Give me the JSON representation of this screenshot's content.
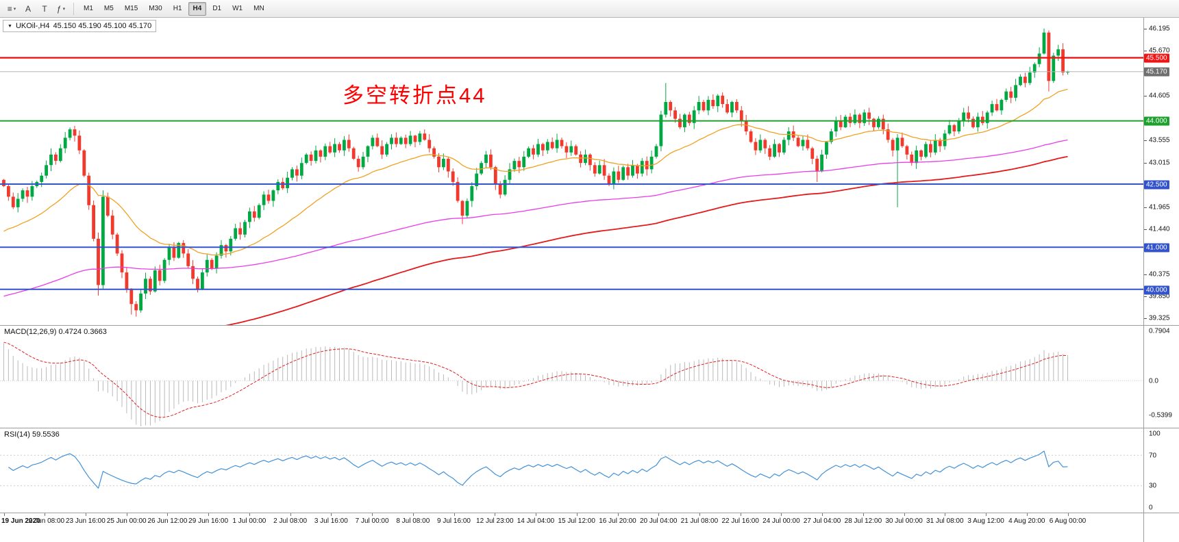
{
  "toolbar": {
    "icons": [
      {
        "name": "menu-icon",
        "glyph": "≡",
        "caret": true
      },
      {
        "name": "pointer-tool-icon",
        "glyph": "A",
        "caret": false
      },
      {
        "name": "text-tool-icon",
        "glyph": "T",
        "caret": false
      },
      {
        "name": "indicators-icon",
        "glyph": "ƒ",
        "caret": true
      }
    ],
    "timeframes": [
      {
        "label": "M1",
        "active": false
      },
      {
        "label": "M5",
        "active": false
      },
      {
        "label": "M15",
        "active": false
      },
      {
        "label": "M30",
        "active": false
      },
      {
        "label": "H1",
        "active": false
      },
      {
        "label": "H4",
        "active": true
      },
      {
        "label": "D1",
        "active": false
      },
      {
        "label": "W1",
        "active": false
      },
      {
        "label": "MN",
        "active": false
      }
    ]
  },
  "symbol_header": {
    "symbol": "UKOil-,H4",
    "ohlc": "45.150 45.190 45.100 45.170"
  },
  "annotation": {
    "text": "多空转折点44",
    "color": "#ff0000"
  },
  "main_chart": {
    "price_ticks": [
      46.195,
      45.67,
      44.605,
      43.555,
      43.015,
      41.965,
      41.44,
      40.375,
      39.85,
      39.325
    ],
    "levels": [
      {
        "label": "45.500",
        "value": 45.5,
        "color": "#f21414",
        "thickness": 2.4
      },
      {
        "label": "44.000",
        "value": 44.0,
        "color": "#1ba12c",
        "thickness": 2
      },
      {
        "label": "42.500",
        "value": 42.5,
        "color": "#3353cd",
        "thickness": 2
      },
      {
        "label": "41.000",
        "value": 41.0,
        "color": "#3353cd",
        "thickness": 2
      },
      {
        "label": "40.000",
        "value": 40.0,
        "color": "#3353cd",
        "thickness": 2
      }
    ],
    "current_price": {
      "label": "45.170",
      "value": 45.17,
      "line_color": "#b3b3b3",
      "tag_color": "#6f6f6f"
    }
  },
  "macd": {
    "label": "MACD(12,26,9) 0.4724 0.3663",
    "ticks": [
      {
        "label": "0.7904",
        "value": 0.7904
      },
      {
        "label": "0.0",
        "value": 0.0
      },
      {
        "label": "-0.5399",
        "value": -0.5399
      }
    ]
  },
  "rsi": {
    "label": "RSI(14) 59.5536",
    "ticks": [
      {
        "label": "100",
        "value": 100
      },
      {
        "label": "70",
        "value": 70
      },
      {
        "label": "30",
        "value": 30
      },
      {
        "label": "0",
        "value": 0
      }
    ]
  },
  "time_axis": {
    "labels": [
      "19 Jun 2020",
      "22 Jun 08:00",
      "23 Jun 16:00",
      "25 Jun 00:00",
      "26 Jun 12:00",
      "29 Jun 16:00",
      "1 Jul 00:00",
      "2 Jul 08:00",
      "3 Jul 16:00",
      "7 Jul 00:00",
      "8 Jul 08:00",
      "9 Jul 16:00",
      "12 Jul 23:00",
      "14 Jul 04:00",
      "15 Jul 12:00",
      "16 Jul 20:00",
      "20 Jul 04:00",
      "21 Jul 08:00",
      "22 Jul 16:00",
      "24 Jul 00:00",
      "27 Jul 04:00",
      "28 Jul 12:00",
      "30 Jul 00:00",
      "31 Jul 08:00",
      "3 Aug 12:00",
      "4 Aug 20:00",
      "6 Aug 00:00"
    ]
  },
  "chart_data": {
    "type": "candlestick",
    "symbol": "UKOil-",
    "timeframe": "H4",
    "last_ohlc": {
      "open": 45.15,
      "high": 45.19,
      "low": 45.1,
      "close": 45.17
    },
    "y_range": [
      39.15,
      46.45
    ],
    "up_color": "#00a843",
    "down_color": "#ef3a2d",
    "closes": [
      42.45,
      42.2,
      41.95,
      42.15,
      42.35,
      42.2,
      42.45,
      42.55,
      42.7,
      42.95,
      43.2,
      43.05,
      43.35,
      43.6,
      43.8,
      43.65,
      43.3,
      42.7,
      42.0,
      41.2,
      40.1,
      42.2,
      41.75,
      41.3,
      40.85,
      40.4,
      40.0,
      39.65,
      39.5,
      39.9,
      40.25,
      39.95,
      40.45,
      40.2,
      40.7,
      41.0,
      40.75,
      41.1,
      40.85,
      40.55,
      40.25,
      40.0,
      40.4,
      40.7,
      40.5,
      40.8,
      41.05,
      40.9,
      41.2,
      41.45,
      41.3,
      41.6,
      41.85,
      41.7,
      42.0,
      42.25,
      42.1,
      42.35,
      42.55,
      42.4,
      42.65,
      42.85,
      42.7,
      43.0,
      43.2,
      43.05,
      43.3,
      43.15,
      43.4,
      43.25,
      43.45,
      43.3,
      43.55,
      43.35,
      43.1,
      42.9,
      43.15,
      43.4,
      43.6,
      43.4,
      43.2,
      43.45,
      43.6,
      43.45,
      43.6,
      43.45,
      43.65,
      43.5,
      43.7,
      43.55,
      43.35,
      43.15,
      42.9,
      43.1,
      42.8,
      42.55,
      42.1,
      41.75,
      42.1,
      42.45,
      42.75,
      43.0,
      43.2,
      42.9,
      42.5,
      42.25,
      42.6,
      42.85,
      43.05,
      42.9,
      43.15,
      43.35,
      43.2,
      43.45,
      43.3,
      43.5,
      43.35,
      43.55,
      43.4,
      43.25,
      43.4,
      43.2,
      43.0,
      43.2,
      42.95,
      42.75,
      42.95,
      42.7,
      42.5,
      42.8,
      42.6,
      42.9,
      42.7,
      42.95,
      42.75,
      43.05,
      42.85,
      43.15,
      43.4,
      44.15,
      44.45,
      44.25,
      44.05,
      43.85,
      44.15,
      43.95,
      44.25,
      44.45,
      44.25,
      44.5,
      44.35,
      44.6,
      44.4,
      44.2,
      44.45,
      44.25,
      44.0,
      43.75,
      43.5,
      43.3,
      43.55,
      43.35,
      43.15,
      43.45,
      43.25,
      43.55,
      43.75,
      43.6,
      43.4,
      43.55,
      43.35,
      43.1,
      42.8,
      43.2,
      43.5,
      43.75,
      44.0,
      43.85,
      44.1,
      43.95,
      44.15,
      43.95,
      44.2,
      44.05,
      43.85,
      44.05,
      43.8,
      43.55,
      43.3,
      43.6,
      43.4,
      43.2,
      43.0,
      43.3,
      43.15,
      43.45,
      43.25,
      43.55,
      43.4,
      43.7,
      43.9,
      43.75,
      44.0,
      44.2,
      44.05,
      43.85,
      44.1,
      43.95,
      44.2,
      44.4,
      44.25,
      44.5,
      44.7,
      44.55,
      44.85,
      45.05,
      44.9,
      45.15,
      45.35,
      45.6,
      46.1,
      44.95,
      45.55,
      45.7,
      45.15,
      45.17
    ],
    "overrides": {
      "20": {
        "low": 39.85
      },
      "21": {
        "high": 42.35
      },
      "27": {
        "low": 39.4
      },
      "28": {
        "low": 39.35
      },
      "97": {
        "low": 41.55
      },
      "140": {
        "high": 44.9
      },
      "172": {
        "low": 42.55
      },
      "189": {
        "low": 41.95
      },
      "219": {
        "high": 45.75
      },
      "220": {
        "high": 46.195
      },
      "221": {
        "high": 46.15,
        "low": 44.7
      },
      "225": {
        "high": 45.19,
        "low": 45.1
      }
    },
    "ma": [
      {
        "name": "ma-fast-orange",
        "period": 28,
        "seed": 41.3,
        "color": "#f0a122",
        "width": 1.3
      },
      {
        "name": "ma-mid-magenta",
        "period": 150,
        "seed": 39.8,
        "color": "#ea3bea",
        "width": 1.3
      },
      {
        "name": "ma-slow-red",
        "period": 180,
        "seed": 37.6,
        "color": "#e51919",
        "width": 1.8
      }
    ],
    "macd_params": {
      "fast": 12,
      "slow": 26,
      "signal": 9,
      "seed_fast": 43.0,
      "seed_slow": 42.3,
      "seed_signal": 0.62,
      "range": [
        -0.75,
        0.88
      ],
      "bar_color": "#b9b9b9",
      "signal_color": "#e02020",
      "last_values": [
        0.4724,
        0.3663
      ]
    },
    "rsi_params": {
      "period": 14,
      "seed_gain": 0.13,
      "seed_loss": 0.09,
      "color": "#4090d8",
      "levels": [
        70,
        30
      ],
      "last_value": 59.5536
    }
  }
}
